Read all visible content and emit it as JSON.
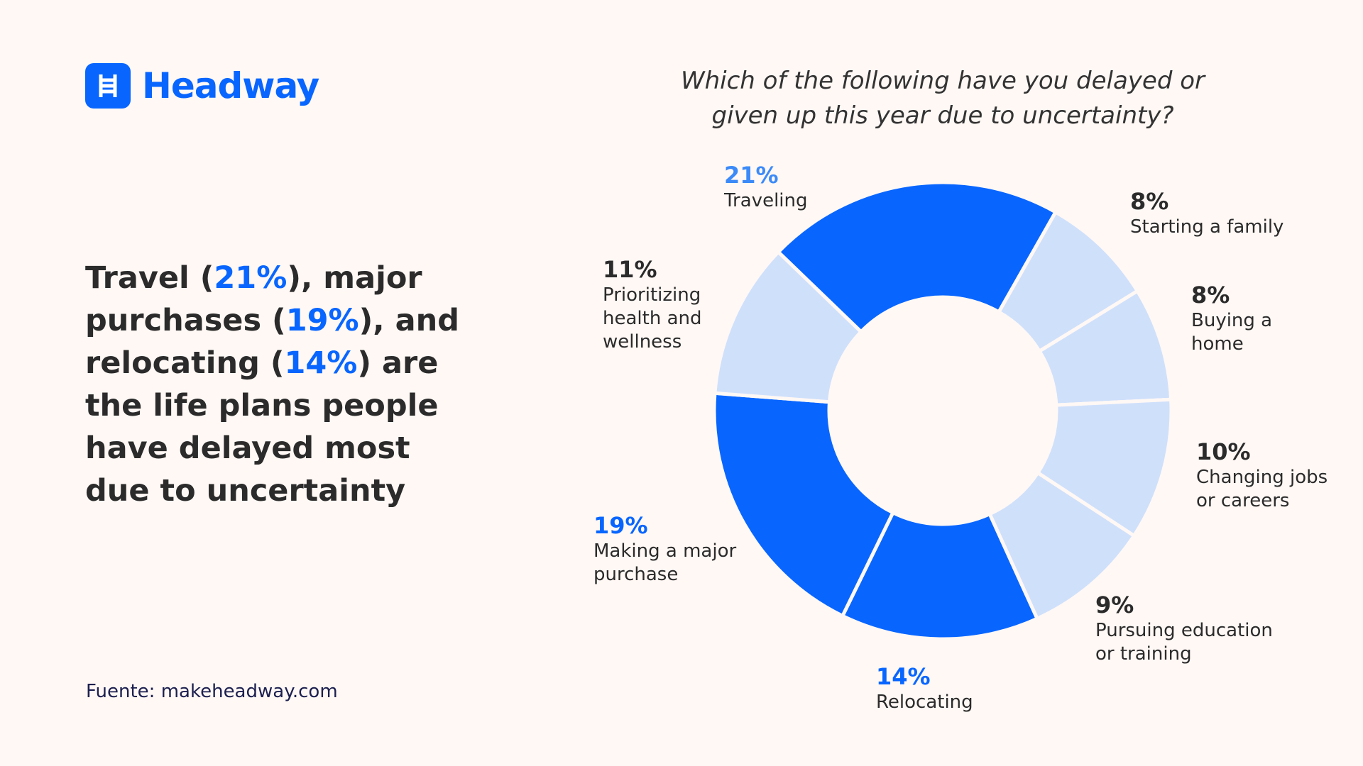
{
  "logo": "Headway",
  "headline": [
    {
      "text": "Travel ("
    },
    {
      "text": "21%",
      "highlight": true
    },
    {
      "text": "), major purchases ("
    },
    {
      "text": "19%",
      "highlight": true
    },
    {
      "text": "), and relocating ("
    },
    {
      "text": "14%",
      "highlight": true
    },
    {
      "text": ") are the life plans people have delayed most due to uncertainty"
    }
  ],
  "headline_highlight_color": "#0866ff",
  "source": "Fuente: makeheadway.com",
  "chart_data": {
    "type": "donut",
    "title": "Which of the following have you delayed or given up this year due to uncertainty?",
    "categories": [
      "Traveling",
      "Starting a family",
      "Buying a home",
      "Changing jobs or careers",
      "Pursuing education or training",
      "Relocating",
      "Making a major purchase",
      "Prioritizing health and wellness"
    ],
    "values": [
      21,
      8,
      8,
      10,
      9,
      14,
      19,
      11
    ],
    "value_labels": [
      "21%",
      "8%",
      "8%",
      "10%",
      "9%",
      "14%",
      "19%",
      "11%"
    ],
    "colors": [
      "#0866ff",
      "#cfe0fb",
      "#cfe0fb",
      "#cfe0fb",
      "#cfe0fb",
      "#0866ff",
      "#0866ff",
      "#cfe0fb"
    ],
    "value_label_colors": [
      "#3b8af8",
      "#2b2b2b",
      "#2b2b2b",
      "#2b2b2b",
      "#2b2b2b",
      "#0866ff",
      "#0866ff",
      "#2b2b2b"
    ]
  }
}
